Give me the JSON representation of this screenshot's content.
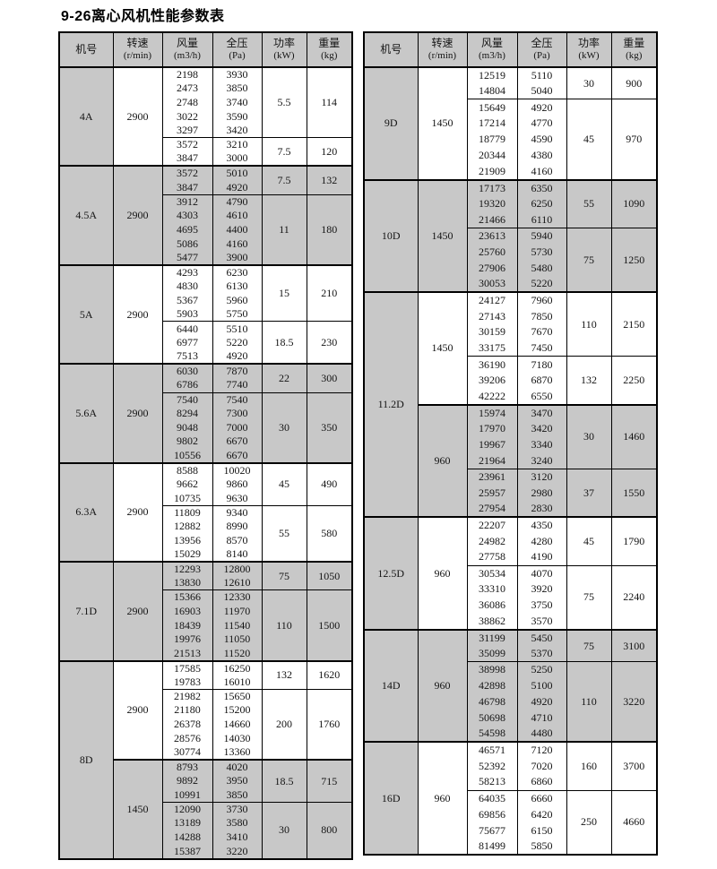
{
  "title": "9-26离心风机性能参数表",
  "colors": {
    "shade": "#c8c8c8",
    "border": "#000000",
    "text": "#141414"
  },
  "headers": [
    {
      "l1": "机号",
      "l2": ""
    },
    {
      "l1": "转速",
      "l2": "(r/min)"
    },
    {
      "l1": "风量",
      "l2": "(m3/h)"
    },
    {
      "l1": "全压",
      "l2": "(Pa)"
    },
    {
      "l1": "功率",
      "l2": "(kW)"
    },
    {
      "l1": "重量",
      "l2": "(kg)"
    }
  ],
  "tables": [
    {
      "sections": [
        {
          "model": "4A",
          "groups": [
            {
              "speed": "2900",
              "shaded": false,
              "blocks": [
                {
                  "rows": [
                    [
                      "2198",
                      "3930"
                    ],
                    [
                      "2473",
                      "3850"
                    ],
                    [
                      "2748",
                      "3740"
                    ],
                    [
                      "3022",
                      "3590"
                    ],
                    [
                      "3297",
                      "3420"
                    ]
                  ],
                  "power": "5.5",
                  "weight": "114"
                },
                {
                  "rows": [
                    [
                      "3572",
                      "3210"
                    ],
                    [
                      "3847",
                      "3000"
                    ]
                  ],
                  "power": "7.5",
                  "weight": "120"
                }
              ]
            }
          ]
        },
        {
          "model": "4.5A",
          "groups": [
            {
              "speed": "2900",
              "shaded": true,
              "blocks": [
                {
                  "rows": [
                    [
                      "3572",
                      "5010"
                    ],
                    [
                      "3847",
                      "4920"
                    ]
                  ],
                  "power": "7.5",
                  "weight": "132"
                },
                {
                  "rows": [
                    [
                      "3912",
                      "4790"
                    ],
                    [
                      "4303",
                      "4610"
                    ],
                    [
                      "4695",
                      "4400"
                    ],
                    [
                      "5086",
                      "4160"
                    ],
                    [
                      "5477",
                      "3900"
                    ]
                  ],
                  "power": "11",
                  "weight": "180"
                }
              ]
            }
          ]
        },
        {
          "model": "5A",
          "groups": [
            {
              "speed": "2900",
              "shaded": false,
              "blocks": [
                {
                  "rows": [
                    [
                      "4293",
                      "6230"
                    ],
                    [
                      "4830",
                      "6130"
                    ],
                    [
                      "5367",
                      "5960"
                    ],
                    [
                      "5903",
                      "5750"
                    ]
                  ],
                  "power": "15",
                  "weight": "210"
                },
                {
                  "rows": [
                    [
                      "6440",
                      "5510"
                    ],
                    [
                      "6977",
                      "5220"
                    ],
                    [
                      "7513",
                      "4920"
                    ]
                  ],
                  "power": "18.5",
                  "weight": "230"
                }
              ]
            }
          ]
        },
        {
          "model": "5.6A",
          "groups": [
            {
              "speed": "2900",
              "shaded": true,
              "blocks": [
                {
                  "rows": [
                    [
                      "6030",
                      "7870"
                    ],
                    [
                      "6786",
                      "7740"
                    ]
                  ],
                  "power": "22",
                  "weight": "300"
                },
                {
                  "rows": [
                    [
                      "7540",
                      "7540"
                    ],
                    [
                      "8294",
                      "7300"
                    ],
                    [
                      "9048",
                      "7000"
                    ],
                    [
                      "9802",
                      "6670"
                    ],
                    [
                      "10556",
                      "6670"
                    ]
                  ],
                  "power": "30",
                  "weight": "350"
                }
              ]
            }
          ]
        },
        {
          "model": "6.3A",
          "groups": [
            {
              "speed": "2900",
              "shaded": false,
              "blocks": [
                {
                  "rows": [
                    [
                      "8588",
                      "10020"
                    ],
                    [
                      "9662",
                      "9860"
                    ],
                    [
                      "10735",
                      "9630"
                    ]
                  ],
                  "power": "45",
                  "weight": "490"
                },
                {
                  "rows": [
                    [
                      "11809",
                      "9340"
                    ],
                    [
                      "12882",
                      "8990"
                    ],
                    [
                      "13956",
                      "8570"
                    ],
                    [
                      "15029",
                      "8140"
                    ]
                  ],
                  "power": "55",
                  "weight": "580"
                }
              ]
            }
          ]
        },
        {
          "model": "7.1D",
          "groups": [
            {
              "speed": "2900",
              "shaded": true,
              "blocks": [
                {
                  "rows": [
                    [
                      "12293",
                      "12800"
                    ],
                    [
                      "13830",
                      "12610"
                    ]
                  ],
                  "power": "75",
                  "weight": "1050"
                },
                {
                  "rows": [
                    [
                      "15366",
                      "12330"
                    ],
                    [
                      "16903",
                      "11970"
                    ],
                    [
                      "18439",
                      "11540"
                    ],
                    [
                      "19976",
                      "11050"
                    ],
                    [
                      "21513",
                      "11520"
                    ]
                  ],
                  "power": "110",
                  "weight": "1500"
                }
              ]
            }
          ]
        },
        {
          "model": "8D",
          "groups": [
            {
              "speed": "2900",
              "shaded": false,
              "blocks": [
                {
                  "rows": [
                    [
                      "17585",
                      "16250"
                    ],
                    [
                      "19783",
                      "16010"
                    ]
                  ],
                  "power": "132",
                  "weight": "1620"
                },
                {
                  "rows": [
                    [
                      "21982",
                      "15650"
                    ],
                    [
                      "21180",
                      "15200"
                    ],
                    [
                      "26378",
                      "14660"
                    ],
                    [
                      "28576",
                      "14030"
                    ],
                    [
                      "30774",
                      "13360"
                    ]
                  ],
                  "power": "200",
                  "weight": "1760"
                }
              ]
            },
            {
              "speed": "1450",
              "shaded": true,
              "blocks": [
                {
                  "rows": [
                    [
                      "8793",
                      "4020"
                    ],
                    [
                      "9892",
                      "3950"
                    ],
                    [
                      "10991",
                      "3850"
                    ]
                  ],
                  "power": "18.5",
                  "weight": "715"
                },
                {
                  "rows": [
                    [
                      "12090",
                      "3730"
                    ],
                    [
                      "13189",
                      "3580"
                    ],
                    [
                      "14288",
                      "3410"
                    ],
                    [
                      "15387",
                      "3220"
                    ]
                  ],
                  "power": "30",
                  "weight": "800"
                }
              ]
            }
          ]
        }
      ]
    },
    {
      "sections": [
        {
          "model": "9D",
          "groups": [
            {
              "speed": "1450",
              "shaded": false,
              "blocks": [
                {
                  "rows": [
                    [
                      "12519",
                      "5110"
                    ],
                    [
                      "14804",
                      "5040"
                    ]
                  ],
                  "power": "30",
                  "weight": "900"
                },
                {
                  "rows": [
                    [
                      "15649",
                      "4920"
                    ],
                    [
                      "17214",
                      "4770"
                    ],
                    [
                      "18779",
                      "4590"
                    ],
                    [
                      "20344",
                      "4380"
                    ],
                    [
                      "21909",
                      "4160"
                    ]
                  ],
                  "power": "45",
                  "weight": "970"
                }
              ]
            }
          ]
        },
        {
          "model": "10D",
          "groups": [
            {
              "speed": "1450",
              "shaded": true,
              "blocks": [
                {
                  "rows": [
                    [
                      "17173",
                      "6350"
                    ],
                    [
                      "19320",
                      "6250"
                    ],
                    [
                      "21466",
                      "6110"
                    ]
                  ],
                  "power": "55",
                  "weight": "1090"
                },
                {
                  "rows": [
                    [
                      "23613",
                      "5940"
                    ],
                    [
                      "25760",
                      "5730"
                    ],
                    [
                      "27906",
                      "5480"
                    ],
                    [
                      "30053",
                      "5220"
                    ]
                  ],
                  "power": "75",
                  "weight": "1250"
                }
              ]
            }
          ]
        },
        {
          "model": "11.2D",
          "groups": [
            {
              "speed": "1450",
              "shaded": false,
              "blocks": [
                {
                  "rows": [
                    [
                      "24127",
                      "7960"
                    ],
                    [
                      "27143",
                      "7850"
                    ],
                    [
                      "30159",
                      "7670"
                    ],
                    [
                      "33175",
                      "7450"
                    ]
                  ],
                  "power": "110",
                  "weight": "2150"
                },
                {
                  "rows": [
                    [
                      "36190",
                      "7180"
                    ],
                    [
                      "39206",
                      "6870"
                    ],
                    [
                      "42222",
                      "6550"
                    ]
                  ],
                  "power": "132",
                  "weight": "2250"
                }
              ]
            },
            {
              "speed": "960",
              "shaded": true,
              "blocks": [
                {
                  "rows": [
                    [
                      "15974",
                      "3470"
                    ],
                    [
                      "17970",
                      "3420"
                    ],
                    [
                      "19967",
                      "3340"
                    ],
                    [
                      "21964",
                      "3240"
                    ]
                  ],
                  "power": "30",
                  "weight": "1460"
                },
                {
                  "rows": [
                    [
                      "23961",
                      "3120"
                    ],
                    [
                      "25957",
                      "2980"
                    ],
                    [
                      "27954",
                      "2830"
                    ]
                  ],
                  "power": "37",
                  "weight": "1550"
                }
              ]
            }
          ]
        },
        {
          "model": "12.5D",
          "groups": [
            {
              "speed": "960",
              "shaded": false,
              "blocks": [
                {
                  "rows": [
                    [
                      "22207",
                      "4350"
                    ],
                    [
                      "24982",
                      "4280"
                    ],
                    [
                      "27758",
                      "4190"
                    ]
                  ],
                  "power": "45",
                  "weight": "1790"
                },
                {
                  "rows": [
                    [
                      "30534",
                      "4070"
                    ],
                    [
                      "33310",
                      "3920"
                    ],
                    [
                      "36086",
                      "3750"
                    ],
                    [
                      "38862",
                      "3570"
                    ]
                  ],
                  "power": "75",
                  "weight": "2240"
                }
              ]
            }
          ]
        },
        {
          "model": "14D",
          "groups": [
            {
              "speed": "960",
              "shaded": true,
              "blocks": [
                {
                  "rows": [
                    [
                      "31199",
                      "5450"
                    ],
                    [
                      "35099",
                      "5370"
                    ]
                  ],
                  "power": "75",
                  "weight": "3100"
                },
                {
                  "rows": [
                    [
                      "38998",
                      "5250"
                    ],
                    [
                      "42898",
                      "5100"
                    ],
                    [
                      "46798",
                      "4920"
                    ],
                    [
                      "50698",
                      "4710"
                    ],
                    [
                      "54598",
                      "4480"
                    ]
                  ],
                  "power": "110",
                  "weight": "3220"
                }
              ]
            }
          ]
        },
        {
          "model": "16D",
          "groups": [
            {
              "speed": "960",
              "shaded": false,
              "blocks": [
                {
                  "rows": [
                    [
                      "46571",
                      "7120"
                    ],
                    [
                      "52392",
                      "7020"
                    ],
                    [
                      "58213",
                      "6860"
                    ]
                  ],
                  "power": "160",
                  "weight": "3700"
                },
                {
                  "rows": [
                    [
                      "64035",
                      "6660"
                    ],
                    [
                      "69856",
                      "6420"
                    ],
                    [
                      "75677",
                      "6150"
                    ],
                    [
                      "81499",
                      "5850"
                    ]
                  ],
                  "power": "250",
                  "weight": "4660"
                }
              ]
            }
          ]
        }
      ]
    }
  ]
}
